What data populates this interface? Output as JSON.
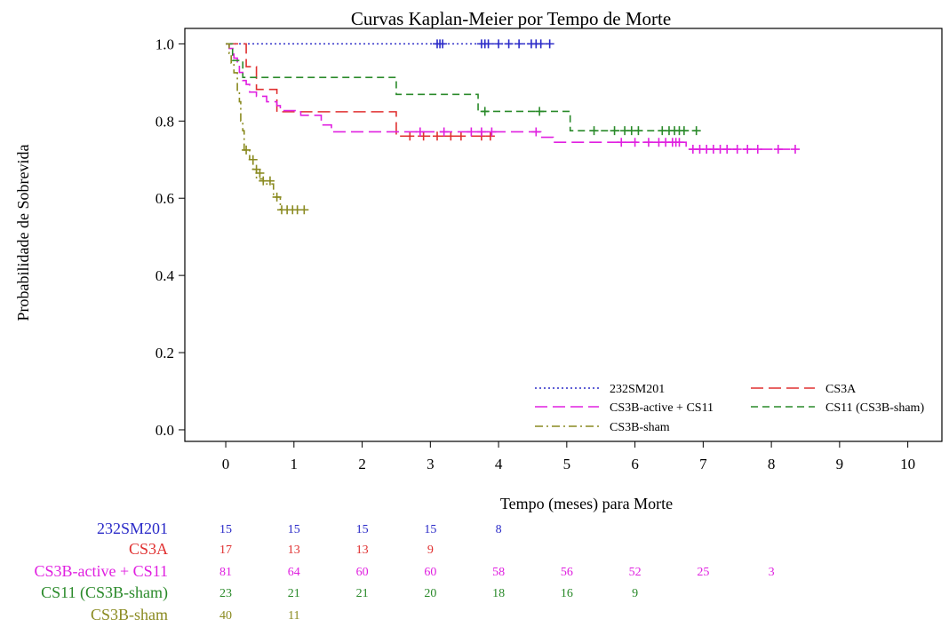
{
  "chart_data": {
    "type": "line",
    "title": "Curvas Kaplan-Meier por Tempo de Morte",
    "xlabel": "Tempo (meses) para Morte",
    "ylabel": "Probabilidade de Sobrevida",
    "xlim": [
      -0.6,
      10.5
    ],
    "ylim": [
      -0.03,
      1.04
    ],
    "xticks": [
      0,
      1,
      2,
      3,
      4,
      5,
      6,
      7,
      8,
      9,
      10
    ],
    "yticks": [
      "0.0",
      "0.2",
      "0.4",
      "0.6",
      "0.8",
      "1.0"
    ],
    "grid": false,
    "legend_position": "bottom-right",
    "series": [
      {
        "name": "232SM201",
        "color": "#2b2bc8",
        "dash": "dotted",
        "steps": [
          [
            0,
            1.0
          ],
          [
            4.75,
            1.0
          ]
        ],
        "censored": [
          [
            3.1,
            1.0
          ],
          [
            3.14,
            1.0
          ],
          [
            3.18,
            1.0
          ],
          [
            3.75,
            1.0
          ],
          [
            3.8,
            1.0
          ],
          [
            3.85,
            1.0
          ],
          [
            4.0,
            1.0
          ],
          [
            4.15,
            1.0
          ],
          [
            4.3,
            1.0
          ],
          [
            4.48,
            1.0
          ],
          [
            4.55,
            1.0
          ],
          [
            4.62,
            1.0
          ],
          [
            4.75,
            1.0
          ]
        ]
      },
      {
        "name": "CS3A",
        "color": "#e03030",
        "dash": "longdash",
        "steps": [
          [
            0,
            1.0
          ],
          [
            0.3,
            0.941
          ],
          [
            0.45,
            0.882
          ],
          [
            0.75,
            0.824
          ],
          [
            2.5,
            0.824
          ],
          [
            2.5,
            0.761
          ],
          [
            3.9,
            0.761
          ]
        ],
        "censored": [
          [
            2.7,
            0.761
          ],
          [
            2.9,
            0.761
          ],
          [
            3.1,
            0.761
          ],
          [
            3.3,
            0.761
          ],
          [
            3.45,
            0.761
          ],
          [
            3.75,
            0.761
          ],
          [
            3.88,
            0.761
          ]
        ]
      },
      {
        "name": "CS3B-active + CS11",
        "color": "#e020e0",
        "dash": "longdash",
        "steps": [
          [
            0,
            1.0
          ],
          [
            0.05,
            0.988
          ],
          [
            0.12,
            0.963
          ],
          [
            0.17,
            0.95
          ],
          [
            0.2,
            0.926
          ],
          [
            0.25,
            0.905
          ],
          [
            0.3,
            0.895
          ],
          [
            0.35,
            0.875
          ],
          [
            0.45,
            0.864
          ],
          [
            0.6,
            0.85
          ],
          [
            0.75,
            0.84
          ],
          [
            0.8,
            0.827
          ],
          [
            1.1,
            0.815
          ],
          [
            1.4,
            0.79
          ],
          [
            1.55,
            0.772
          ],
          [
            4.6,
            0.772
          ],
          [
            4.62,
            0.758
          ],
          [
            4.75,
            0.758
          ],
          [
            4.8,
            0.745
          ],
          [
            6.7,
            0.745
          ],
          [
            6.75,
            0.727
          ],
          [
            8.35,
            0.727
          ]
        ],
        "censored": [
          [
            2.85,
            0.772
          ],
          [
            3.2,
            0.772
          ],
          [
            3.6,
            0.772
          ],
          [
            3.75,
            0.772
          ],
          [
            3.9,
            0.772
          ],
          [
            4.55,
            0.772
          ],
          [
            5.8,
            0.745
          ],
          [
            6.0,
            0.745
          ],
          [
            6.2,
            0.745
          ],
          [
            6.35,
            0.745
          ],
          [
            6.45,
            0.745
          ],
          [
            6.55,
            0.745
          ],
          [
            6.6,
            0.745
          ],
          [
            6.65,
            0.745
          ],
          [
            6.85,
            0.727
          ],
          [
            6.95,
            0.727
          ],
          [
            7.05,
            0.727
          ],
          [
            7.15,
            0.727
          ],
          [
            7.25,
            0.727
          ],
          [
            7.35,
            0.727
          ],
          [
            7.5,
            0.727
          ],
          [
            7.65,
            0.727
          ],
          [
            7.8,
            0.727
          ],
          [
            8.1,
            0.727
          ],
          [
            8.35,
            0.727
          ]
        ]
      },
      {
        "name": "CS11 (CS3B-sham)",
        "color": "#2a8a2a",
        "dash": "dashed",
        "steps": [
          [
            0,
            1.0
          ],
          [
            0.1,
            0.957
          ],
          [
            0.25,
            0.913
          ],
          [
            2.5,
            0.913
          ],
          [
            2.5,
            0.869
          ],
          [
            3.7,
            0.869
          ],
          [
            3.7,
            0.825
          ],
          [
            5.05,
            0.825
          ],
          [
            5.05,
            0.775
          ],
          [
            6.9,
            0.775
          ]
        ],
        "censored": [
          [
            3.8,
            0.825
          ],
          [
            4.6,
            0.825
          ],
          [
            5.4,
            0.775
          ],
          [
            5.7,
            0.775
          ],
          [
            5.85,
            0.775
          ],
          [
            5.95,
            0.775
          ],
          [
            6.05,
            0.775
          ],
          [
            6.4,
            0.775
          ],
          [
            6.5,
            0.775
          ],
          [
            6.58,
            0.775
          ],
          [
            6.65,
            0.775
          ],
          [
            6.72,
            0.775
          ],
          [
            6.9,
            0.775
          ]
        ]
      },
      {
        "name": "CS3B-sham",
        "color": "#8a8a20",
        "dash": "dashdot",
        "steps": [
          [
            0,
            1.0
          ],
          [
            0.05,
            0.975
          ],
          [
            0.08,
            0.95
          ],
          [
            0.12,
            0.925
          ],
          [
            0.17,
            0.875
          ],
          [
            0.2,
            0.85
          ],
          [
            0.22,
            0.8
          ],
          [
            0.25,
            0.775
          ],
          [
            0.27,
            0.725
          ],
          [
            0.35,
            0.7
          ],
          [
            0.4,
            0.675
          ],
          [
            0.45,
            0.65
          ],
          [
            0.55,
            0.637
          ],
          [
            0.7,
            0.603
          ],
          [
            0.8,
            0.57
          ],
          [
            1.15,
            0.57
          ]
        ],
        "censored": [
          [
            0.3,
            0.725
          ],
          [
            0.4,
            0.7
          ],
          [
            0.45,
            0.675
          ],
          [
            0.5,
            0.665
          ],
          [
            0.55,
            0.645
          ],
          [
            0.65,
            0.645
          ],
          [
            0.75,
            0.603
          ],
          [
            0.82,
            0.57
          ],
          [
            0.9,
            0.57
          ],
          [
            0.98,
            0.57
          ],
          [
            1.05,
            0.57
          ],
          [
            1.15,
            0.57
          ]
        ]
      }
    ],
    "legend": [
      {
        "series": 0,
        "label": "232SM201"
      },
      {
        "series": 1,
        "label": "CS3A"
      },
      {
        "series": 2,
        "label": "CS3B-active + CS11"
      },
      {
        "series": 3,
        "label": "CS11 (CS3B-sham)"
      },
      {
        "series": 4,
        "label": "CS3B-sham"
      }
    ],
    "risk_table": {
      "times": [
        0,
        1,
        2,
        3,
        4,
        5,
        6,
        7,
        8
      ],
      "rows": [
        {
          "label": "232SM201",
          "color": "#2b2bc8",
          "values": [
            "15",
            "15",
            "15",
            "15",
            "8"
          ]
        },
        {
          "label": "CS3A",
          "color": "#e03030",
          "values": [
            "17",
            "13",
            "13",
            "9"
          ]
        },
        {
          "label": "CS3B-active + CS11",
          "color": "#e020e0",
          "values": [
            "81",
            "64",
            "60",
            "60",
            "58",
            "56",
            "52",
            "25",
            "3"
          ]
        },
        {
          "label": "CS11 (CS3B-sham)",
          "color": "#2a8a2a",
          "values": [
            "23",
            "21",
            "21",
            "20",
            "18",
            "16",
            "9"
          ]
        },
        {
          "label": "CS3B-sham",
          "color": "#8a8a20",
          "values": [
            "40",
            "11"
          ]
        }
      ]
    }
  }
}
